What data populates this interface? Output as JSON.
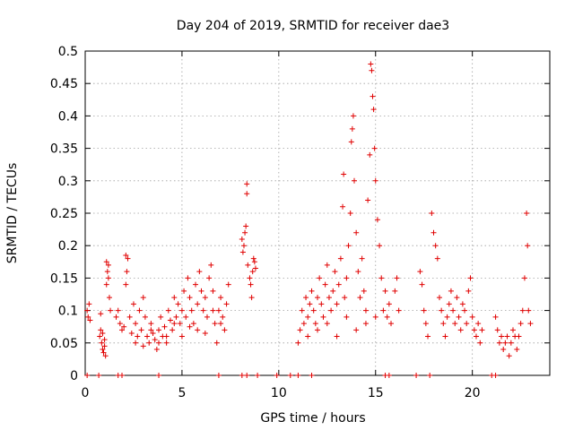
{
  "chart_data": {
    "type": "scatter",
    "title": "Day 204 of 2019, SRMTID for receiver dae3",
    "xlabel": "GPS time / hours",
    "ylabel": "SRMTID / TECUs",
    "xlim": [
      0,
      24
    ],
    "ylim": [
      0,
      0.5
    ],
    "xticks": [
      0,
      5,
      10,
      15,
      20
    ],
    "xtick_labels": [
      "0",
      "5",
      "10",
      "15",
      "20"
    ],
    "yticks": [
      0,
      0.05,
      0.1,
      0.15,
      0.2,
      0.25,
      0.3,
      0.35,
      0.4,
      0.45,
      0.5
    ],
    "ytick_labels": [
      "0",
      "0.05",
      "0.1",
      "0.15",
      "0.2",
      "0.25",
      "0.3",
      "0.35",
      "0.4",
      "0.45",
      "0.5"
    ],
    "grid": true,
    "marker": "+",
    "marker_color": "#e00000",
    "series": [
      {
        "name": "SRMTID",
        "points": [
          [
            0.1,
            0.1
          ],
          [
            0.2,
            0.11
          ],
          [
            0.15,
            0.09
          ],
          [
            0.25,
            0.085
          ],
          [
            0.75,
            0.06
          ],
          [
            0.8,
            0.07
          ],
          [
            0.85,
            0.05
          ],
          [
            0.9,
            0.04
          ],
          [
            0.95,
            0.035
          ],
          [
            1.0,
            0.045
          ],
          [
            1.05,
            0.03
          ],
          [
            0.8,
            0.095
          ],
          [
            0.9,
            0.065
          ],
          [
            1.0,
            0.055
          ],
          [
            1.1,
            0.14
          ],
          [
            1.15,
            0.16
          ],
          [
            1.2,
            0.17
          ],
          [
            1.1,
            0.175
          ],
          [
            1.2,
            0.15
          ],
          [
            1.25,
            0.12
          ],
          [
            1.3,
            0.1
          ],
          [
            1.6,
            0.09
          ],
          [
            1.7,
            0.1
          ],
          [
            1.8,
            0.08
          ],
          [
            1.9,
            0.07
          ],
          [
            2.0,
            0.075
          ],
          [
            2.1,
            0.14
          ],
          [
            2.15,
            0.16
          ],
          [
            2.2,
            0.18
          ],
          [
            2.1,
            0.185
          ],
          [
            2.3,
            0.09
          ],
          [
            2.5,
            0.11
          ],
          [
            2.6,
            0.08
          ],
          [
            2.7,
            0.06
          ],
          [
            2.8,
            0.1
          ],
          [
            2.9,
            0.07
          ],
          [
            3.0,
            0.12
          ],
          [
            3.1,
            0.09
          ],
          [
            3.2,
            0.06
          ],
          [
            3.3,
            0.05
          ],
          [
            3.4,
            0.08
          ],
          [
            3.5,
            0.065
          ],
          [
            3.6,
            0.055
          ],
          [
            3.7,
            0.04
          ],
          [
            3.8,
            0.07
          ],
          [
            3.9,
            0.09
          ],
          [
            4.0,
            0.06
          ],
          [
            4.1,
            0.075
          ],
          [
            4.2,
            0.05
          ],
          [
            4.3,
            0.1
          ],
          [
            4.4,
            0.085
          ],
          [
            4.5,
            0.07
          ],
          [
            4.6,
            0.12
          ],
          [
            4.7,
            0.09
          ],
          [
            4.8,
            0.11
          ],
          [
            4.9,
            0.08
          ],
          [
            5.0,
            0.1
          ],
          [
            5.1,
            0.13
          ],
          [
            5.2,
            0.09
          ],
          [
            5.3,
            0.15
          ],
          [
            5.4,
            0.12
          ],
          [
            5.5,
            0.1
          ],
          [
            5.6,
            0.08
          ],
          [
            5.7,
            0.14
          ],
          [
            5.8,
            0.11
          ],
          [
            5.9,
            0.16
          ],
          [
            6.0,
            0.13
          ],
          [
            6.1,
            0.1
          ],
          [
            6.2,
            0.12
          ],
          [
            6.3,
            0.09
          ],
          [
            6.4,
            0.15
          ],
          [
            6.5,
            0.17
          ],
          [
            6.6,
            0.13
          ],
          [
            6.7,
            0.08
          ],
          [
            6.8,
            0.05
          ],
          [
            6.9,
            0.1
          ],
          [
            7.0,
            0.12
          ],
          [
            7.1,
            0.09
          ],
          [
            7.2,
            0.07
          ],
          [
            7.3,
            0.11
          ],
          [
            7.4,
            0.14
          ],
          [
            2.4,
            0.065
          ],
          [
            2.6,
            0.05
          ],
          [
            3.0,
            0.045
          ],
          [
            3.4,
            0.07
          ],
          [
            3.8,
            0.05
          ],
          [
            4.2,
            0.06
          ],
          [
            4.6,
            0.08
          ],
          [
            5.0,
            0.06
          ],
          [
            5.4,
            0.075
          ],
          [
            5.8,
            0.07
          ],
          [
            6.2,
            0.065
          ],
          [
            6.6,
            0.1
          ],
          [
            7.0,
            0.08
          ],
          [
            8.1,
            0.21
          ],
          [
            8.15,
            0.19
          ],
          [
            8.2,
            0.2
          ],
          [
            8.25,
            0.22
          ],
          [
            8.3,
            0.23
          ],
          [
            8.35,
            0.28
          ],
          [
            8.35,
            0.295
          ],
          [
            8.4,
            0.17
          ],
          [
            8.5,
            0.15
          ],
          [
            8.55,
            0.14
          ],
          [
            8.6,
            0.12
          ],
          [
            8.65,
            0.16
          ],
          [
            8.7,
            0.18
          ],
          [
            8.75,
            0.175
          ],
          [
            8.8,
            0.165
          ],
          [
            11.0,
            0.05
          ],
          [
            11.1,
            0.07
          ],
          [
            11.2,
            0.1
          ],
          [
            11.3,
            0.08
          ],
          [
            11.4,
            0.12
          ],
          [
            11.5,
            0.09
          ],
          [
            11.6,
            0.11
          ],
          [
            11.7,
            0.13
          ],
          [
            11.8,
            0.1
          ],
          [
            11.9,
            0.08
          ],
          [
            12.0,
            0.12
          ],
          [
            12.1,
            0.15
          ],
          [
            12.2,
            0.11
          ],
          [
            12.3,
            0.09
          ],
          [
            12.4,
            0.14
          ],
          [
            12.5,
            0.17
          ],
          [
            12.6,
            0.12
          ],
          [
            12.7,
            0.1
          ],
          [
            12.8,
            0.13
          ],
          [
            12.9,
            0.16
          ],
          [
            13.0,
            0.11
          ],
          [
            13.1,
            0.14
          ],
          [
            13.2,
            0.18
          ],
          [
            13.3,
            0.26
          ],
          [
            13.35,
            0.31
          ],
          [
            13.4,
            0.12
          ],
          [
            13.5,
            0.15
          ],
          [
            13.6,
            0.2
          ],
          [
            13.7,
            0.25
          ],
          [
            13.75,
            0.36
          ],
          [
            13.8,
            0.38
          ],
          [
            13.85,
            0.4
          ],
          [
            13.9,
            0.3
          ],
          [
            14.0,
            0.22
          ],
          [
            14.1,
            0.16
          ],
          [
            14.2,
            0.12
          ],
          [
            14.3,
            0.18
          ],
          [
            14.4,
            0.13
          ],
          [
            14.5,
            0.1
          ],
          [
            14.6,
            0.27
          ],
          [
            14.7,
            0.34
          ],
          [
            14.75,
            0.48
          ],
          [
            14.8,
            0.47
          ],
          [
            14.85,
            0.43
          ],
          [
            14.9,
            0.41
          ],
          [
            14.95,
            0.35
          ],
          [
            15.0,
            0.3
          ],
          [
            15.1,
            0.24
          ],
          [
            15.2,
            0.2
          ],
          [
            15.3,
            0.15
          ],
          [
            15.4,
            0.1
          ],
          [
            15.5,
            0.13
          ],
          [
            15.6,
            0.09
          ],
          [
            15.7,
            0.11
          ],
          [
            15.8,
            0.08
          ],
          [
            11.5,
            0.06
          ],
          [
            12.0,
            0.07
          ],
          [
            12.5,
            0.08
          ],
          [
            13.0,
            0.06
          ],
          [
            13.5,
            0.09
          ],
          [
            14.0,
            0.07
          ],
          [
            14.5,
            0.08
          ],
          [
            15.0,
            0.09
          ],
          [
            16.0,
            0.13
          ],
          [
            16.1,
            0.15
          ],
          [
            16.2,
            0.1
          ],
          [
            17.3,
            0.16
          ],
          [
            17.4,
            0.14
          ],
          [
            17.5,
            0.1
          ],
          [
            17.6,
            0.08
          ],
          [
            17.7,
            0.06
          ],
          [
            17.9,
            0.25
          ],
          [
            18.0,
            0.22
          ],
          [
            18.1,
            0.2
          ],
          [
            18.2,
            0.18
          ],
          [
            18.3,
            0.12
          ],
          [
            18.4,
            0.1
          ],
          [
            18.5,
            0.08
          ],
          [
            18.6,
            0.06
          ],
          [
            18.7,
            0.09
          ],
          [
            18.8,
            0.11
          ],
          [
            18.9,
            0.13
          ],
          [
            19.0,
            0.1
          ],
          [
            19.1,
            0.08
          ],
          [
            19.2,
            0.12
          ],
          [
            19.3,
            0.09
          ],
          [
            19.4,
            0.07
          ],
          [
            19.5,
            0.11
          ],
          [
            19.6,
            0.1
          ],
          [
            19.7,
            0.08
          ],
          [
            19.8,
            0.13
          ],
          [
            19.9,
            0.15
          ],
          [
            20.0,
            0.09
          ],
          [
            20.1,
            0.07
          ],
          [
            20.2,
            0.06
          ],
          [
            20.3,
            0.08
          ],
          [
            20.4,
            0.05
          ],
          [
            20.5,
            0.07
          ],
          [
            21.2,
            0.09
          ],
          [
            21.3,
            0.07
          ],
          [
            21.4,
            0.05
          ],
          [
            21.5,
            0.06
          ],
          [
            21.6,
            0.04
          ],
          [
            21.7,
            0.05
          ],
          [
            21.8,
            0.06
          ],
          [
            21.9,
            0.03
          ],
          [
            22.0,
            0.05
          ],
          [
            22.1,
            0.07
          ],
          [
            22.2,
            0.06
          ],
          [
            22.3,
            0.04
          ],
          [
            22.4,
            0.06
          ],
          [
            22.5,
            0.08
          ],
          [
            22.6,
            0.1
          ],
          [
            22.7,
            0.15
          ],
          [
            22.8,
            0.25
          ],
          [
            22.85,
            0.2
          ],
          [
            22.9,
            0.1
          ],
          [
            23.0,
            0.08
          ],
          [
            0.1,
            0
          ],
          [
            0.7,
            0
          ],
          [
            1.7,
            0
          ],
          [
            1.9,
            0
          ],
          [
            3.8,
            0
          ],
          [
            6.9,
            0
          ],
          [
            8.1,
            0
          ],
          [
            8.35,
            0
          ],
          [
            8.9,
            0
          ],
          [
            9.9,
            0
          ],
          [
            10.6,
            0
          ],
          [
            11.0,
            0
          ],
          [
            11.7,
            0
          ],
          [
            15.5,
            0
          ],
          [
            15.7,
            0
          ],
          [
            17.1,
            0
          ],
          [
            17.8,
            0
          ],
          [
            21.0,
            0
          ],
          [
            21.2,
            0
          ]
        ]
      }
    ]
  }
}
